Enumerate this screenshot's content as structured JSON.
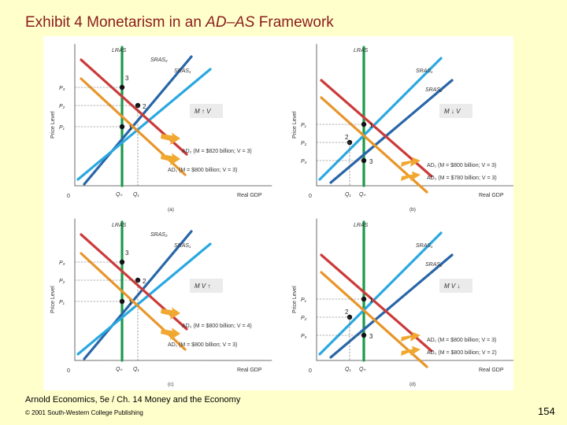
{
  "title": {
    "prefix": "Exhibit 4  Monetarism in an ",
    "italic": "AD–AS",
    "suffix": " Framework"
  },
  "footer": {
    "source": "Arnold Economics, 5e / Ch. 14  Money and the Economy",
    "copyright": "© 2001 South-Western College Publishing",
    "page": "154"
  },
  "colors": {
    "page_bg": "#ffffcc",
    "title": "#8b1c1c",
    "lras": "#1a9a4a",
    "sras1": "#2aa8e0",
    "sras2": "#2866a8",
    "ad": "#e8962a",
    "ad2": "#cc3a3a",
    "arrow": "#f0a830"
  },
  "panels": [
    {
      "id": "a",
      "panel_label": "(a)",
      "lras_label": "LRAS",
      "sras_top_label": "SRAS₂",
      "sras_bottom_label": "SRAS₁",
      "y_axis_label": "Price Level",
      "x_axis_label": "Real GDP",
      "origin": "0",
      "price_labels": [
        "P₃",
        "P₂",
        "P₁"
      ],
      "q_labels": [
        "Qₙ",
        "Q₁"
      ],
      "box_label": "M ↑ V",
      "ad_upper_label": "AD₂  (M = $820 billion; V = 3)",
      "ad_lower_label": "AD₁  (M = $800 billion; V = 3)",
      "points": [
        "3",
        "2",
        "1"
      ]
    },
    {
      "id": "b",
      "panel_label": "(b)",
      "lras_label": "LRAS",
      "sras_top_label": "SRAS₁",
      "sras_bottom_label": "SRAS₂",
      "y_axis_label": "Price Level",
      "x_axis_label": "Real GDP",
      "origin": "0",
      "price_labels": [
        "P₁",
        "P₂",
        "P₃"
      ],
      "q_labels": [
        "Q₁",
        "Qₙ"
      ],
      "box_label": "M ↓ V",
      "ad_upper_label": "AD₁  (M = $800 billion; V = 3)",
      "ad_lower_label": "AD₂  (M = $780 billion; V = 3)",
      "points": [
        "1",
        "2",
        "3"
      ]
    },
    {
      "id": "c",
      "panel_label": "(c)",
      "lras_label": "LRAS",
      "sras_top_label": "SRAS₂",
      "sras_bottom_label": "SRAS₁",
      "y_axis_label": "Price Level",
      "x_axis_label": "Real GDP",
      "origin": "0",
      "price_labels": [
        "P₃",
        "P₂",
        "P₁"
      ],
      "q_labels": [
        "Qₙ",
        "Q₁"
      ],
      "box_label": "M V ↑",
      "ad_upper_label": "AD₂  (M = $800 billion; V = 4)",
      "ad_lower_label": "AD₁  (M = $800 billion; V = 3)",
      "points": [
        "3",
        "2",
        "1"
      ]
    },
    {
      "id": "d",
      "panel_label": "(d)",
      "lras_label": "LRAS",
      "sras_top_label": "SRAS₁",
      "sras_bottom_label": "SRAS₂",
      "y_axis_label": "Price Level",
      "x_axis_label": "Real GDP",
      "origin": "0",
      "price_labels": [
        "P₁",
        "P₂",
        "P₃"
      ],
      "q_labels": [
        "Q₁",
        "Qₙ"
      ],
      "box_label": "M V ↓",
      "ad_upper_label": "AD₁  (M = $800 billion; V = 3)",
      "ad_lower_label": "AD₂  (M = $800 billion; V = 2)",
      "points": [
        "1",
        "2",
        "3"
      ]
    }
  ]
}
